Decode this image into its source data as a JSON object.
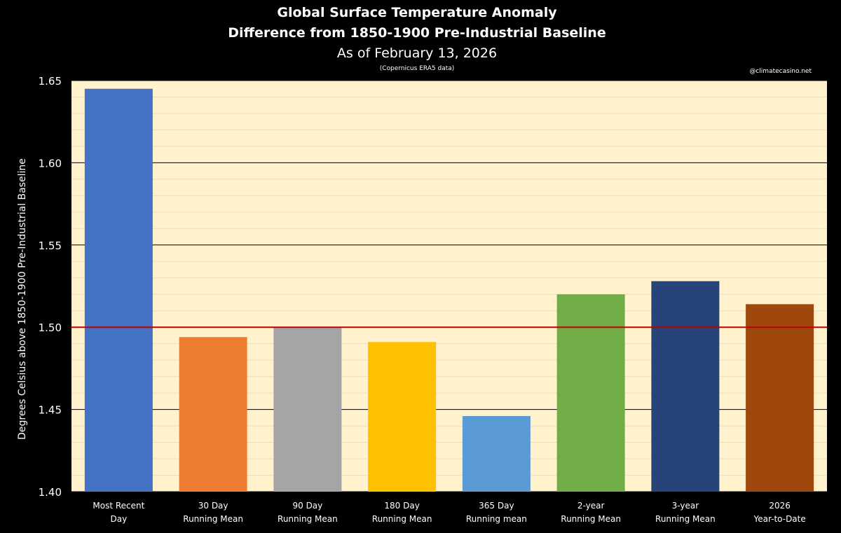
{
  "chart_data": {
    "type": "bar",
    "title": "Global Surface Temperature Anomaly",
    "subtitle": "Difference from 1850-1900 Pre-Industrial Baseline",
    "date_line": "As of February 13, 2026",
    "source": "(Copernicus ERA5 data)",
    "credit": "@climatecasino.net",
    "xlabel": "",
    "ylabel": "Degrees Celsius above 1850-1900 Pre-Industrial Baseline",
    "ylim": [
      1.4,
      1.65
    ],
    "yticks": [
      "1.40",
      "1.45",
      "1.50",
      "1.55",
      "1.60",
      "1.65"
    ],
    "major_step": 0.05,
    "minor_step": 0.01,
    "reference_line": 1.5,
    "categories": [
      [
        "Most Recent",
        "Day"
      ],
      [
        "30 Day",
        "Running Mean"
      ],
      [
        "90 Day",
        "Running Mean"
      ],
      [
        "180 Day",
        "Running Mean"
      ],
      [
        "365 Day",
        "Running mean"
      ],
      [
        "2-year",
        "Running Mean"
      ],
      [
        "3-year",
        "Running Mean"
      ],
      [
        "2026",
        "Year-to-Date"
      ]
    ],
    "values": [
      1.645,
      1.494,
      1.5,
      1.491,
      1.446,
      1.52,
      1.528,
      1.514
    ],
    "colors": {
      "bars": [
        "#4472C4",
        "#ED7D31",
        "#A5A5A5",
        "#FFC000",
        "#5B9BD5",
        "#70AD47",
        "#264478",
        "#9E480E"
      ],
      "plot_background": "#FFF2CC",
      "major_grid": "#000000",
      "minor_grid": "#E8DDC0",
      "reference_line": "#C00000",
      "text": "#FFFFFF"
    }
  }
}
